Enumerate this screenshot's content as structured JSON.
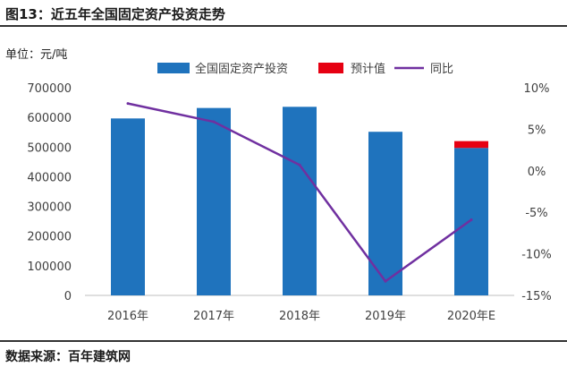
{
  "header": {
    "title": "图13：近五年全国固定资产投资走势"
  },
  "unit_label": "单位：元/吨",
  "source": "数据来源：百年建筑网",
  "colors": {
    "investment": "#1f73bd",
    "estimate": "#e60012",
    "growth": "#7030a0"
  },
  "chart_data": {
    "type": "bar",
    "categories": [
      "2016年",
      "2017年",
      "2018年",
      "2019年",
      "2020年E"
    ],
    "series": [
      {
        "name": "全国固定资产投资",
        "type": "bar",
        "axis": "left",
        "values": [
          596500,
          631684,
          635636,
          551478,
          497000
        ]
      },
      {
        "name": "预计值",
        "type": "bar",
        "axis": "left",
        "stacked": true,
        "values": [
          null,
          null,
          null,
          null,
          23000
        ]
      },
      {
        "name": "同比",
        "type": "line",
        "axis": "right",
        "values": [
          8.1,
          5.9,
          0.7,
          -13.3,
          -5.9
        ]
      }
    ],
    "y_left": {
      "ylim": [
        0,
        700000
      ],
      "ticks": [
        "0",
        "100000",
        "200000",
        "300000",
        "400000",
        "500000",
        "600000",
        "700000"
      ]
    },
    "y_right": {
      "ylim": [
        -15,
        10
      ],
      "ticks": [
        "-15%",
        "-10%",
        "-5%",
        "0%",
        "5%",
        "10%"
      ]
    },
    "legend": {
      "position": "top-center",
      "entries": [
        "全国固定资产投资",
        "预计值",
        "同比"
      ]
    },
    "grid": false
  }
}
